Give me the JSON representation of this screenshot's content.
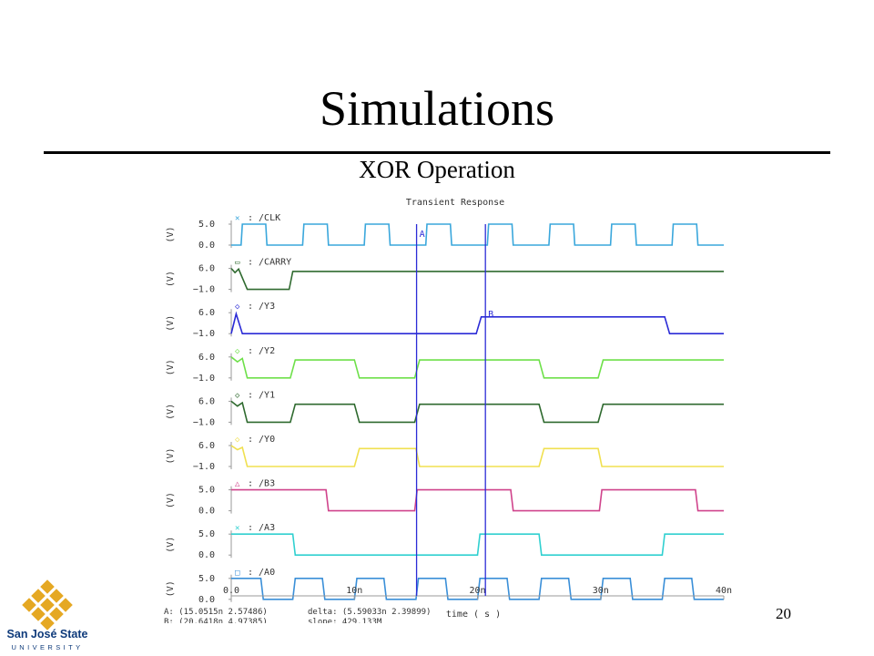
{
  "slide": {
    "title": "Simulations",
    "subtitle": "XOR Operation",
    "page_number": "20"
  },
  "logo": {
    "name": "San José State",
    "sub": "UNIVERSITY",
    "gold": "#e5a823",
    "blue": "#0f3b7b"
  },
  "chart_data": {
    "type": "line",
    "title": "Transient Response",
    "xlabel": "time ( s )",
    "x_ticks": [
      {
        "value": 0,
        "label": "0.0"
      },
      {
        "value": 10,
        "label": "10n"
      },
      {
        "value": 20,
        "label": "20n"
      },
      {
        "value": 30,
        "label": "30n"
      },
      {
        "value": 40,
        "label": "40n"
      }
    ],
    "xlim": [
      0,
      40
    ],
    "x_unit": "ns",
    "grid": false,
    "cursors": [
      {
        "name": "A",
        "x": 15.0515,
        "color": "#2b2bd6"
      },
      {
        "name": "B",
        "x": 20.6418,
        "color": "#2b2bd6"
      }
    ],
    "readouts": {
      "a": "A: (15.0515n 2.57486)",
      "b": "B: (20.6418n 4.97385)",
      "delta": "delta: (5.59033n 2.39899)",
      "slope": "slope: 429.133M"
    },
    "series": [
      {
        "name": "/CLK",
        "marker": "✕",
        "unit": "(V)",
        "color": "#3aa7dc",
        "ylim": [
          0,
          5
        ],
        "y_ticks": [
          "5.0",
          "0.0"
        ],
        "points": [
          [
            0,
            0
          ],
          [
            0.8,
            0
          ],
          [
            0.9,
            5
          ],
          [
            2.8,
            5
          ],
          [
            2.9,
            0
          ],
          [
            5.8,
            0
          ],
          [
            5.9,
            5
          ],
          [
            7.8,
            5
          ],
          [
            7.9,
            0
          ],
          [
            10.8,
            0
          ],
          [
            10.9,
            5
          ],
          [
            12.8,
            5
          ],
          [
            12.9,
            0
          ],
          [
            15.8,
            0
          ],
          [
            15.9,
            5
          ],
          [
            17.8,
            5
          ],
          [
            17.9,
            0
          ],
          [
            20.8,
            0
          ],
          [
            20.9,
            5
          ],
          [
            22.8,
            5
          ],
          [
            22.9,
            0
          ],
          [
            25.8,
            0
          ],
          [
            25.9,
            5
          ],
          [
            27.8,
            5
          ],
          [
            27.9,
            0
          ],
          [
            30.8,
            0
          ],
          [
            30.9,
            5
          ],
          [
            32.8,
            5
          ],
          [
            32.9,
            0
          ],
          [
            35.8,
            0
          ],
          [
            35.9,
            5
          ],
          [
            37.8,
            5
          ],
          [
            37.9,
            0
          ],
          [
            40,
            0
          ]
        ]
      },
      {
        "name": "/CARRY",
        "marker": "▭",
        "unit": "(V)",
        "color": "#2f6a2f",
        "ylim": [
          -1,
          6
        ],
        "y_ticks": [
          "6.0",
          "−1.0"
        ],
        "points": [
          [
            0,
            6
          ],
          [
            0.3,
            4.6
          ],
          [
            0.6,
            5.8
          ],
          [
            1.3,
            -1
          ],
          [
            4.7,
            -1
          ],
          [
            5,
            5
          ],
          [
            40,
            5
          ]
        ]
      },
      {
        "name": "/Y3",
        "marker": "◇",
        "unit": "(V)",
        "color": "#2b2bd6",
        "ylim": [
          -1,
          6
        ],
        "y_ticks": [
          "6.0",
          "−1.0"
        ],
        "points": [
          [
            0,
            -1
          ],
          [
            0.4,
            5.6
          ],
          [
            0.9,
            -1
          ],
          [
            19.9,
            -1
          ],
          [
            20.3,
            4.6
          ],
          [
            35.2,
            4.6
          ],
          [
            35.6,
            -1
          ],
          [
            40,
            -1
          ]
        ]
      },
      {
        "name": "/Y2",
        "marker": "◇",
        "unit": "(V)",
        "color": "#6ee04a",
        "ylim": [
          -1,
          6
        ],
        "y_ticks": [
          "6.0",
          "−1.0"
        ],
        "points": [
          [
            0,
            6
          ],
          [
            0.5,
            4.4
          ],
          [
            0.9,
            5.5
          ],
          [
            1.3,
            -1
          ],
          [
            4.8,
            -1
          ],
          [
            5.2,
            5
          ],
          [
            10,
            5
          ],
          [
            10.4,
            -1
          ],
          [
            14.9,
            -1
          ],
          [
            15.3,
            5
          ],
          [
            25,
            5
          ],
          [
            25.4,
            -1
          ],
          [
            29.8,
            -1
          ],
          [
            30.2,
            5
          ],
          [
            40,
            5
          ]
        ]
      },
      {
        "name": "/Y1",
        "marker": "◇",
        "unit": "(V)",
        "color": "#2f6a2f",
        "ylim": [
          -1,
          6
        ],
        "y_ticks": [
          "6.0",
          "−1.0"
        ],
        "points": [
          [
            0,
            6
          ],
          [
            0.5,
            4.4
          ],
          [
            0.9,
            5.5
          ],
          [
            1.3,
            -1
          ],
          [
            4.8,
            -1
          ],
          [
            5.2,
            5
          ],
          [
            10,
            5
          ],
          [
            10.4,
            -1
          ],
          [
            14.9,
            -1
          ],
          [
            15.3,
            5
          ],
          [
            25,
            5
          ],
          [
            25.4,
            -1
          ],
          [
            29.8,
            -1
          ],
          [
            30.2,
            5
          ],
          [
            40,
            5
          ]
        ]
      },
      {
        "name": "/Y0",
        "marker": "◇",
        "unit": "(V)",
        "color": "#f0e050",
        "ylim": [
          -1,
          6
        ],
        "y_ticks": [
          "6.0",
          "−1.0"
        ],
        "points": [
          [
            0,
            6
          ],
          [
            0.5,
            4.6
          ],
          [
            0.9,
            5.4
          ],
          [
            1.3,
            -1
          ],
          [
            10,
            -1
          ],
          [
            10.4,
            5
          ],
          [
            15,
            5
          ],
          [
            15.3,
            -1
          ],
          [
            25,
            -1
          ],
          [
            25.4,
            5
          ],
          [
            29.8,
            5
          ],
          [
            30.1,
            -1
          ],
          [
            40,
            -1
          ]
        ]
      },
      {
        "name": "/B3",
        "marker": "△",
        "unit": "(V)",
        "color": "#d0448c",
        "ylim": [
          0,
          5
        ],
        "y_ticks": [
          "5.0",
          "0.0"
        ],
        "points": [
          [
            0,
            5
          ],
          [
            7.7,
            5
          ],
          [
            7.9,
            0
          ],
          [
            14.9,
            0
          ],
          [
            15.1,
            5
          ],
          [
            22.7,
            5
          ],
          [
            22.9,
            0
          ],
          [
            29.9,
            0
          ],
          [
            30.1,
            5
          ],
          [
            37.7,
            5
          ],
          [
            37.9,
            0
          ],
          [
            40,
            0
          ]
        ]
      },
      {
        "name": "/A3",
        "marker": "✕",
        "unit": "(V)",
        "color": "#30d0d0",
        "ylim": [
          0,
          5
        ],
        "y_ticks": [
          "5.0",
          "0.0"
        ],
        "points": [
          [
            0,
            5
          ],
          [
            5,
            5
          ],
          [
            5.2,
            0
          ],
          [
            20,
            0
          ],
          [
            20.2,
            5
          ],
          [
            25,
            5
          ],
          [
            25.2,
            0
          ],
          [
            35,
            0
          ],
          [
            35.2,
            5
          ],
          [
            40,
            5
          ]
        ]
      },
      {
        "name": "/A0",
        "marker": "□",
        "unit": "(V)",
        "color": "#3a8fd8",
        "ylim": [
          0,
          5
        ],
        "y_ticks": [
          "5.0",
          "0.0"
        ],
        "points": [
          [
            0,
            5
          ],
          [
            2.4,
            5
          ],
          [
            2.6,
            0
          ],
          [
            5,
            0
          ],
          [
            5.2,
            5
          ],
          [
            7.4,
            5
          ],
          [
            7.6,
            0
          ],
          [
            10,
            0
          ],
          [
            10.2,
            5
          ],
          [
            12.4,
            5
          ],
          [
            12.6,
            0
          ],
          [
            15,
            0
          ],
          [
            15.2,
            5
          ],
          [
            17.4,
            5
          ],
          [
            17.6,
            0
          ],
          [
            20,
            0
          ],
          [
            20.2,
            5
          ],
          [
            22.4,
            5
          ],
          [
            22.6,
            0
          ],
          [
            25,
            0
          ],
          [
            25.2,
            5
          ],
          [
            27.4,
            5
          ],
          [
            27.6,
            0
          ],
          [
            30,
            0
          ],
          [
            30.2,
            5
          ],
          [
            32.4,
            5
          ],
          [
            32.6,
            0
          ],
          [
            35,
            0
          ],
          [
            35.2,
            5
          ],
          [
            37.4,
            5
          ],
          [
            37.6,
            0
          ],
          [
            40,
            0
          ]
        ]
      }
    ]
  }
}
